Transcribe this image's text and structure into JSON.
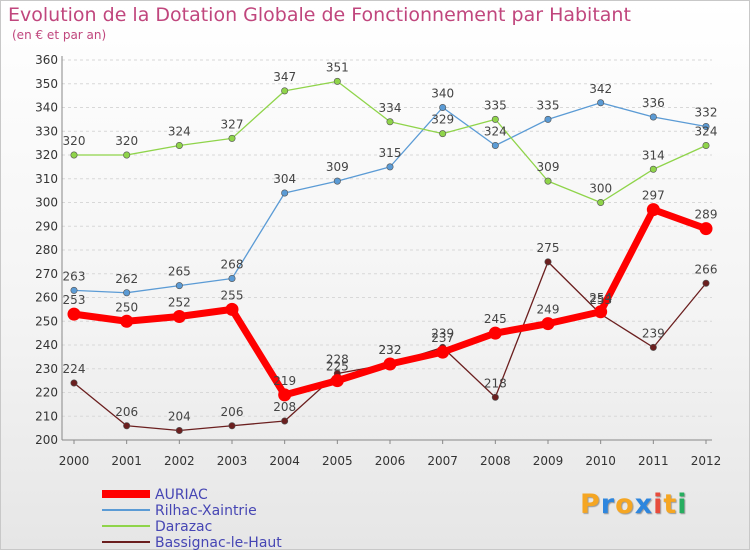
{
  "chart_data": {
    "type": "line",
    "title": "Evolution de la Dotation Globale de Fonctionnement par Habitant",
    "subtitle": "(en € et par an)",
    "x": [
      "2000",
      "2001",
      "2002",
      "2003",
      "2004",
      "2005",
      "2006",
      "2007",
      "2008",
      "2009",
      "2010",
      "2011",
      "2012"
    ],
    "ylim": [
      200,
      360
    ],
    "yticks": [
      200,
      210,
      220,
      230,
      240,
      250,
      260,
      270,
      280,
      290,
      300,
      310,
      320,
      330,
      340,
      350,
      360
    ],
    "grid": "horizontal",
    "legend_position": "bottom-left",
    "series": [
      {
        "name": "AURIAC",
        "color": "#ff0000",
        "values": [
          253,
          250,
          252,
          255,
          219,
          225,
          232,
          237,
          245,
          249,
          254,
          297,
          289
        ]
      },
      {
        "name": "Rilhac-Xaintrie",
        "color": "#5b9bd5",
        "values": [
          263,
          262,
          265,
          268,
          304,
          309,
          315,
          340,
          324,
          335,
          342,
          336,
          332
        ]
      },
      {
        "name": "Darazac",
        "color": "#8fd44a",
        "values": [
          320,
          320,
          324,
          327,
          347,
          351,
          334,
          329,
          335,
          309,
          300,
          314,
          324
        ]
      },
      {
        "name": "Bassignac-le-Haut",
        "color": "#6b1f1f",
        "values": [
          224,
          206,
          204,
          206,
          208,
          228,
          232,
          239,
          218,
          275,
          253,
          239,
          266
        ]
      }
    ]
  },
  "logo": {
    "text": "Proxiti",
    "letters": [
      "P",
      "r",
      "o",
      "x",
      "i",
      "t",
      "i"
    ],
    "colors": [
      "#f5a623",
      "#2e86de",
      "#f5a623",
      "#2e86de",
      "#e74c3c",
      "#f5a623",
      "#27ae60"
    ]
  }
}
